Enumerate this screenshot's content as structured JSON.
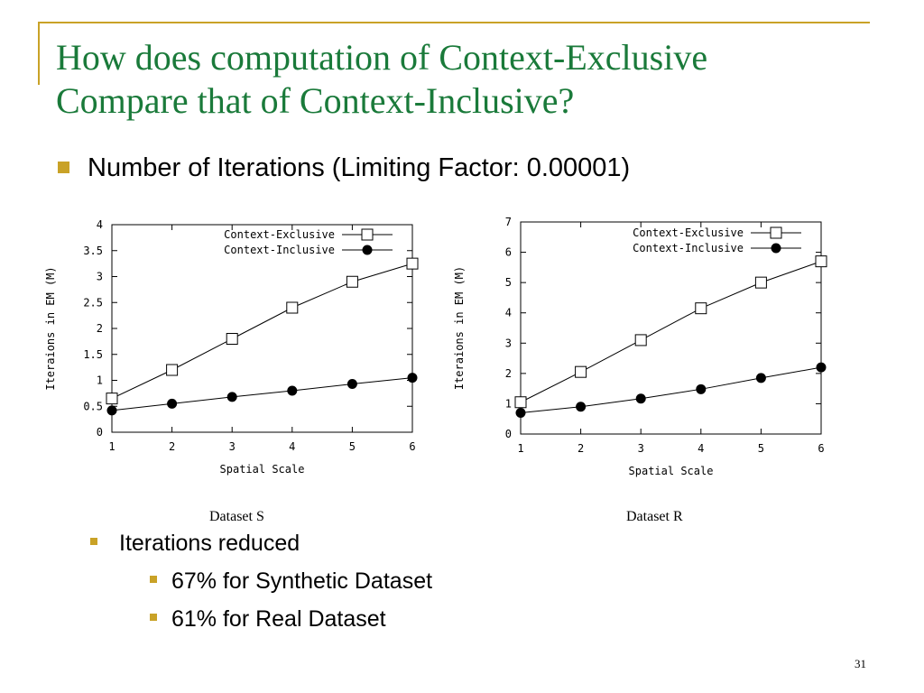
{
  "slide": {
    "title_line1": "How does computation of Context-Exclusive",
    "title_line2": "Compare that of Context-Inclusive?",
    "bullet_main": "Number of Iterations (Limiting Factor: 0.00001)",
    "bullet_sub": "Iterations reduced",
    "bullet_subsub": [
      "67% for Synthetic Dataset",
      "61% for Real Dataset"
    ],
    "page_number": "31",
    "accent_color": "#c9a227",
    "title_color": "#1a7a3a"
  },
  "chart_data": [
    {
      "type": "line",
      "caption": "Dataset S",
      "xlabel": "Spatial Scale",
      "ylabel": "Iteraions in EM (M)",
      "x": [
        1,
        2,
        3,
        4,
        5,
        6
      ],
      "xlim": [
        1,
        6
      ],
      "ylim": [
        0,
        4
      ],
      "xticks": [
        "1",
        "2",
        "3",
        "4",
        "5",
        "6"
      ],
      "yticks": [
        "0",
        "0.5",
        "1",
        "1.5",
        "2",
        "2.5",
        "3",
        "3.5",
        "4"
      ],
      "legend_position": "top-right",
      "series": [
        {
          "name": "Context-Exclusive",
          "marker": "open-square",
          "values": [
            0.65,
            1.2,
            1.8,
            2.4,
            2.9,
            3.25
          ]
        },
        {
          "name": "Context-Inclusive",
          "marker": "filled-circle",
          "values": [
            0.42,
            0.55,
            0.68,
            0.8,
            0.93,
            1.05
          ]
        }
      ]
    },
    {
      "type": "line",
      "caption": "Dataset R",
      "xlabel": "Spatial Scale",
      "ylabel": "Iteraions in EM (M)",
      "x": [
        1,
        2,
        3,
        4,
        5,
        6
      ],
      "xlim": [
        1,
        6
      ],
      "ylim": [
        0,
        7
      ],
      "xticks": [
        "1",
        "2",
        "3",
        "4",
        "5",
        "6"
      ],
      "yticks": [
        "0",
        "1",
        "2",
        "3",
        "4",
        "5",
        "6",
        "7"
      ],
      "legend_position": "top-right",
      "series": [
        {
          "name": "Context-Exclusive",
          "marker": "open-square",
          "values": [
            1.05,
            2.05,
            3.1,
            4.15,
            5.0,
            5.7
          ]
        },
        {
          "name": "Context-Inclusive",
          "marker": "filled-circle",
          "values": [
            0.7,
            0.9,
            1.17,
            1.48,
            1.85,
            2.2
          ]
        }
      ]
    }
  ]
}
